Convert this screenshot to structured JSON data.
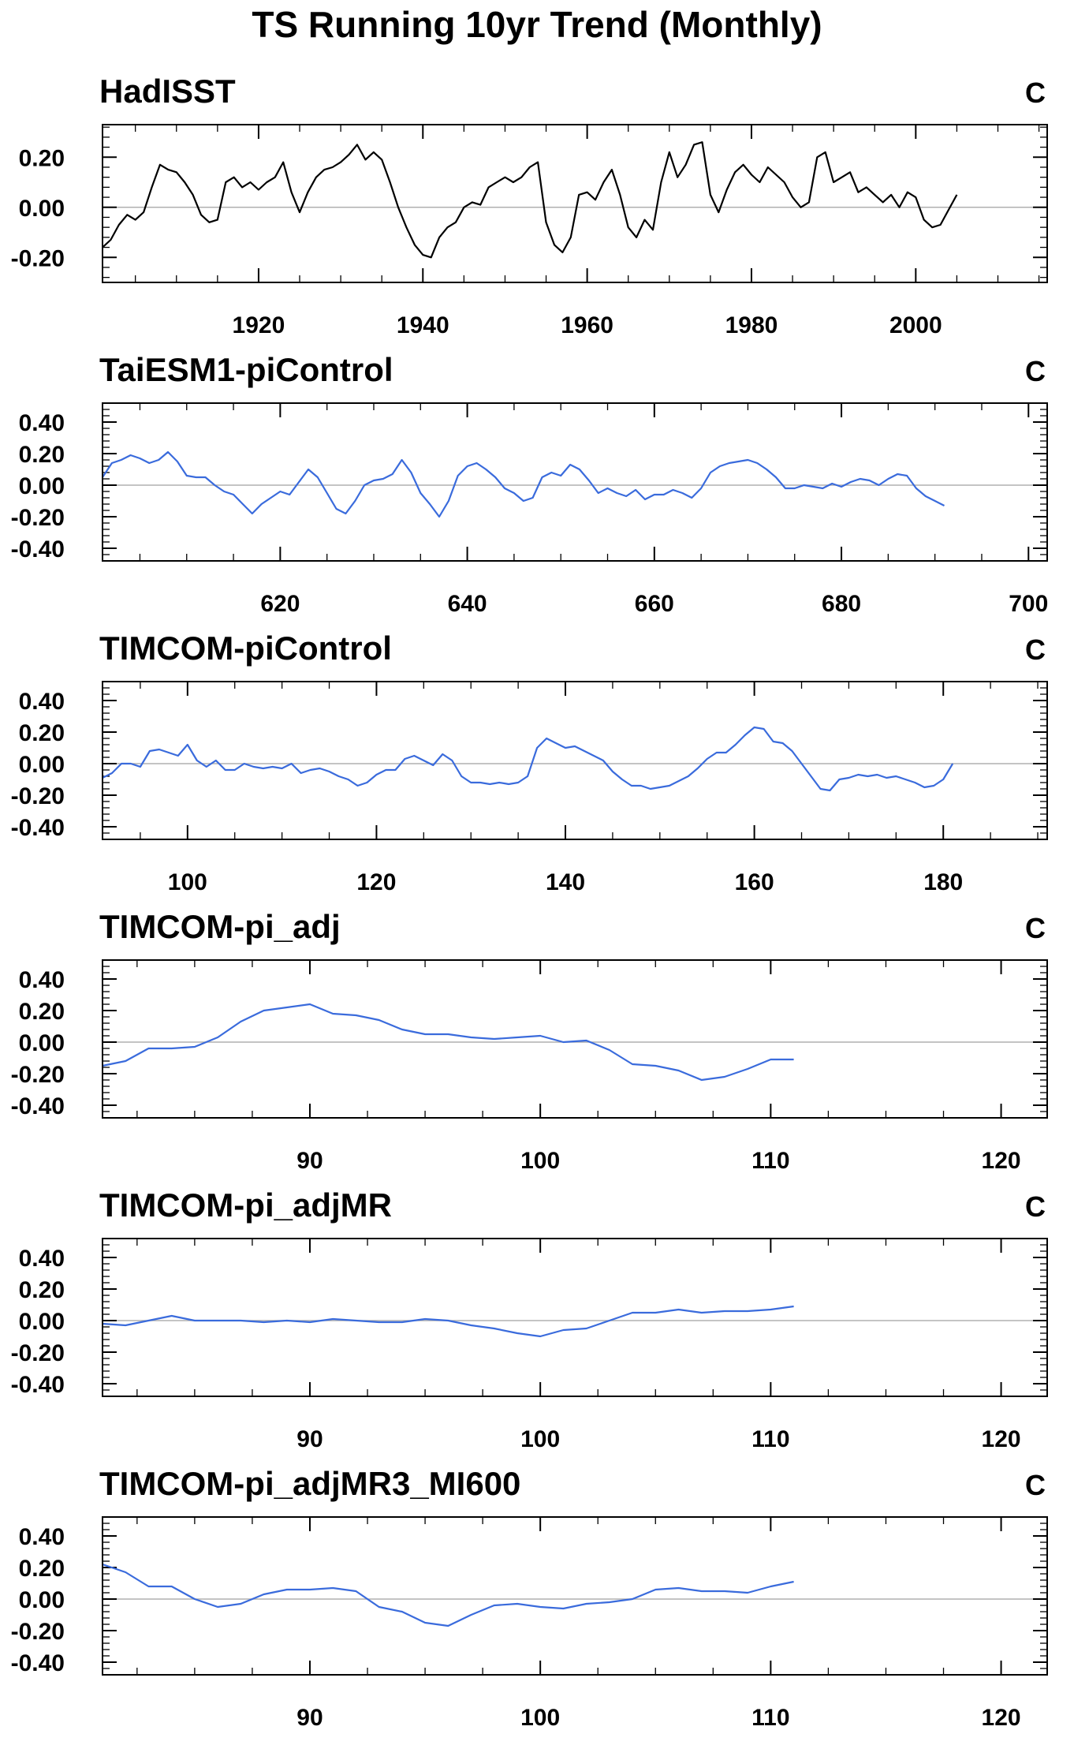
{
  "title": "TS Running 10yr Trend (Monthly)",
  "chart_data": [
    {
      "type": "line",
      "title": "HadISST",
      "unit": "C",
      "color": "#000000",
      "xlim": [
        1901,
        2016
      ],
      "ylim": [
        -0.3,
        0.33
      ],
      "xticks": [
        1920,
        1940,
        1960,
        1980,
        2000
      ],
      "xtick_labels": [
        "1920",
        "1940",
        "1960",
        "1980",
        "2000"
      ],
      "yticks": [
        -0.2,
        0.0,
        0.2
      ],
      "ytick_labels": [
        "-0.20",
        "0.00",
        "0.20"
      ],
      "series": [
        {
          "x": [
            1901,
            1902,
            1903,
            1904,
            1905,
            1906,
            1907,
            1908,
            1909,
            1910,
            1911,
            1912,
            1913,
            1914,
            1915,
            1916,
            1917,
            1918,
            1919,
            1920,
            1921,
            1922,
            1923,
            1924,
            1925,
            1926,
            1927,
            1928,
            1929,
            1930,
            1931,
            1932,
            1933,
            1934,
            1935,
            1936,
            1937,
            1938,
            1939,
            1940,
            1941,
            1942,
            1943,
            1944,
            1945,
            1946,
            1947,
            1948,
            1949,
            1950,
            1951,
            1952,
            1953,
            1954,
            1955,
            1956,
            1957,
            1958,
            1959,
            1960,
            1961,
            1962,
            1963,
            1964,
            1965,
            1966,
            1967,
            1968,
            1969,
            1970,
            1971,
            1972,
            1973,
            1974,
            1975,
            1976,
            1977,
            1978,
            1979,
            1980,
            1981,
            1982,
            1983,
            1984,
            1985,
            1986,
            1987,
            1988,
            1989,
            1990,
            1991,
            1992,
            1993,
            1994,
            1995,
            1996,
            1997,
            1998,
            1999,
            2000,
            2001,
            2002,
            2003,
            2004,
            2005
          ],
          "y": [
            -0.16,
            -0.13,
            -0.07,
            -0.03,
            -0.05,
            -0.02,
            0.08,
            0.17,
            0.15,
            0.14,
            0.1,
            0.05,
            -0.03,
            -0.06,
            -0.05,
            0.1,
            0.12,
            0.08,
            0.1,
            0.07,
            0.1,
            0.12,
            0.18,
            0.06,
            -0.02,
            0.06,
            0.12,
            0.15,
            0.16,
            0.18,
            0.21,
            0.25,
            0.19,
            0.22,
            0.19,
            0.1,
            0.0,
            -0.08,
            -0.15,
            -0.19,
            -0.2,
            -0.12,
            -0.08,
            -0.06,
            0.0,
            0.02,
            0.01,
            0.08,
            0.1,
            0.12,
            0.1,
            0.12,
            0.16,
            0.18,
            -0.06,
            -0.15,
            -0.18,
            -0.12,
            0.05,
            0.06,
            0.03,
            0.1,
            0.15,
            0.05,
            -0.08,
            -0.12,
            -0.05,
            -0.09,
            0.1,
            0.22,
            0.12,
            0.17,
            0.25,
            0.26,
            0.05,
            -0.02,
            0.07,
            0.14,
            0.17,
            0.13,
            0.1,
            0.16,
            0.13,
            0.1,
            0.04,
            0.0,
            0.02,
            0.2,
            0.22,
            0.1,
            0.12,
            0.14,
            0.06,
            0.08,
            0.05,
            0.02,
            0.05,
            0.0,
            0.06,
            0.04,
            -0.05,
            -0.08,
            -0.07,
            -0.01,
            0.05
          ]
        }
      ]
    },
    {
      "type": "line",
      "title": "TaiESM1-piControl",
      "unit": "C",
      "color": "#3a6bdc",
      "xlim": [
        601,
        702
      ],
      "ylim": [
        -0.48,
        0.52
      ],
      "xticks": [
        620,
        640,
        660,
        680,
        700
      ],
      "xtick_labels": [
        "620",
        "640",
        "660",
        "680",
        "700"
      ],
      "yticks": [
        -0.4,
        -0.2,
        0.0,
        0.2,
        0.4
      ],
      "ytick_labels": [
        "-0.40",
        "-0.20",
        "0.00",
        "0.20",
        "0.40"
      ],
      "series": [
        {
          "x": [
            601,
            602,
            603,
            604,
            605,
            606,
            607,
            608,
            609,
            610,
            611,
            612,
            613,
            614,
            615,
            616,
            617,
            618,
            619,
            620,
            621,
            622,
            623,
            624,
            625,
            626,
            627,
            628,
            629,
            630,
            631,
            632,
            633,
            634,
            635,
            636,
            637,
            638,
            639,
            640,
            641,
            642,
            643,
            644,
            645,
            646,
            647,
            648,
            649,
            650,
            651,
            652,
            653,
            654,
            655,
            656,
            657,
            658,
            659,
            660,
            661,
            662,
            663,
            664,
            665,
            666,
            667,
            668,
            669,
            670,
            671,
            672,
            673,
            674,
            675,
            676,
            677,
            678,
            679,
            680,
            681,
            682,
            683,
            684,
            685,
            686,
            687,
            688,
            689,
            690,
            691
          ],
          "y": [
            0.05,
            0.14,
            0.16,
            0.19,
            0.17,
            0.14,
            0.16,
            0.21,
            0.15,
            0.06,
            0.05,
            0.05,
            0.0,
            -0.04,
            -0.06,
            -0.12,
            -0.18,
            -0.12,
            -0.08,
            -0.04,
            -0.06,
            0.02,
            0.1,
            0.05,
            -0.05,
            -0.15,
            -0.18,
            -0.1,
            0.0,
            0.03,
            0.04,
            0.07,
            0.16,
            0.08,
            -0.05,
            -0.12,
            -0.2,
            -0.1,
            0.06,
            0.12,
            0.14,
            0.1,
            0.05,
            -0.02,
            -0.05,
            -0.1,
            -0.08,
            0.05,
            0.08,
            0.06,
            0.13,
            0.1,
            0.03,
            -0.05,
            -0.02,
            -0.05,
            -0.07,
            -0.03,
            -0.09,
            -0.06,
            -0.06,
            -0.03,
            -0.05,
            -0.08,
            -0.02,
            0.08,
            0.12,
            0.14,
            0.15,
            0.16,
            0.14,
            0.1,
            0.05,
            -0.02,
            -0.02,
            0.0,
            -0.01,
            -0.02,
            0.01,
            -0.01,
            0.02,
            0.04,
            0.03,
            0.0,
            0.04,
            0.07,
            0.06,
            -0.02,
            -0.07,
            -0.1,
            -0.13
          ]
        }
      ]
    },
    {
      "type": "line",
      "title": "TIMCOM-piControl",
      "unit": "C",
      "color": "#3a6bdc",
      "xlim": [
        91,
        191
      ],
      "ylim": [
        -0.48,
        0.52
      ],
      "xticks": [
        100,
        120,
        140,
        160,
        180
      ],
      "xtick_labels": [
        "100",
        "120",
        "140",
        "160",
        "180"
      ],
      "yticks": [
        -0.4,
        -0.2,
        0.0,
        0.2,
        0.4
      ],
      "ytick_labels": [
        "-0.40",
        "-0.20",
        "0.00",
        "0.20",
        "0.40"
      ],
      "series": [
        {
          "x": [
            91,
            92,
            93,
            94,
            95,
            96,
            97,
            98,
            99,
            100,
            101,
            102,
            103,
            104,
            105,
            106,
            107,
            108,
            109,
            110,
            111,
            112,
            113,
            114,
            115,
            116,
            117,
            118,
            119,
            120,
            121,
            122,
            123,
            124,
            125,
            126,
            127,
            128,
            129,
            130,
            131,
            132,
            133,
            134,
            135,
            136,
            137,
            138,
            139,
            140,
            141,
            142,
            143,
            144,
            145,
            146,
            147,
            148,
            149,
            150,
            151,
            152,
            153,
            154,
            155,
            156,
            157,
            158,
            159,
            160,
            161,
            162,
            163,
            164,
            165,
            166,
            167,
            168,
            169,
            170,
            171,
            172,
            173,
            174,
            175,
            176,
            177,
            178,
            179,
            180,
            181
          ],
          "y": [
            -0.09,
            -0.06,
            0.0,
            0.0,
            -0.02,
            0.08,
            0.09,
            0.07,
            0.05,
            0.12,
            0.02,
            -0.02,
            0.02,
            -0.04,
            -0.04,
            0.0,
            -0.02,
            -0.03,
            -0.02,
            -0.03,
            0.0,
            -0.06,
            -0.04,
            -0.03,
            -0.05,
            -0.08,
            -0.1,
            -0.14,
            -0.12,
            -0.07,
            -0.04,
            -0.04,
            0.03,
            0.05,
            0.02,
            -0.01,
            0.06,
            0.02,
            -0.08,
            -0.12,
            -0.12,
            -0.13,
            -0.12,
            -0.13,
            -0.12,
            -0.08,
            0.1,
            0.16,
            0.13,
            0.1,
            0.11,
            0.08,
            0.05,
            0.02,
            -0.05,
            -0.1,
            -0.14,
            -0.14,
            -0.16,
            -0.15,
            -0.14,
            -0.11,
            -0.08,
            -0.03,
            0.03,
            0.07,
            0.07,
            0.12,
            0.18,
            0.23,
            0.22,
            0.14,
            0.13,
            0.08,
            0.0,
            -0.08,
            -0.16,
            -0.17,
            -0.1,
            -0.09,
            -0.07,
            -0.08,
            -0.07,
            -0.09,
            -0.08,
            -0.1,
            -0.12,
            -0.15,
            -0.14,
            -0.1,
            0.0
          ]
        }
      ]
    },
    {
      "type": "line",
      "title": "TIMCOM-pi_adj",
      "unit": "C",
      "color": "#3a6bdc",
      "xlim": [
        81,
        122
      ],
      "ylim": [
        -0.48,
        0.52
      ],
      "xticks": [
        90,
        100,
        110,
        120
      ],
      "xtick_labels": [
        "90",
        "100",
        "110",
        "120"
      ],
      "yticks": [
        -0.4,
        -0.2,
        0.0,
        0.2,
        0.4
      ],
      "ytick_labels": [
        "-0.40",
        "-0.20",
        "0.00",
        "0.20",
        "0.40"
      ],
      "series": [
        {
          "x": [
            81,
            82,
            83,
            84,
            85,
            86,
            87,
            88,
            89,
            90,
            91,
            92,
            93,
            94,
            95,
            96,
            97,
            98,
            99,
            100,
            101,
            102,
            103,
            104,
            105,
            106,
            107,
            108,
            109,
            110,
            111
          ],
          "y": [
            -0.15,
            -0.12,
            -0.04,
            -0.04,
            -0.03,
            0.03,
            0.13,
            0.2,
            0.22,
            0.24,
            0.18,
            0.17,
            0.14,
            0.08,
            0.05,
            0.05,
            0.03,
            0.02,
            0.03,
            0.04,
            0.0,
            0.01,
            -0.05,
            -0.14,
            -0.15,
            -0.18,
            -0.24,
            -0.22,
            -0.17,
            -0.11,
            -0.11
          ]
        }
      ]
    },
    {
      "type": "line",
      "title": "TIMCOM-pi_adjMR",
      "unit": "C",
      "color": "#3a6bdc",
      "xlim": [
        81,
        122
      ],
      "ylim": [
        -0.48,
        0.52
      ],
      "xticks": [
        90,
        100,
        110,
        120
      ],
      "xtick_labels": [
        "90",
        "100",
        "110",
        "120"
      ],
      "yticks": [
        -0.4,
        -0.2,
        0.0,
        0.2,
        0.4
      ],
      "ytick_labels": [
        "-0.40",
        "-0.20",
        "0.00",
        "0.20",
        "0.40"
      ],
      "series": [
        {
          "x": [
            81,
            82,
            83,
            84,
            85,
            86,
            87,
            88,
            89,
            90,
            91,
            92,
            93,
            94,
            95,
            96,
            97,
            98,
            99,
            100,
            101,
            102,
            103,
            104,
            105,
            106,
            107,
            108,
            109,
            110,
            111
          ],
          "y": [
            -0.02,
            -0.03,
            0.0,
            0.03,
            0.0,
            0.0,
            0.0,
            -0.01,
            0.0,
            -0.01,
            0.01,
            0.0,
            -0.01,
            -0.01,
            0.01,
            0.0,
            -0.03,
            -0.05,
            -0.08,
            -0.1,
            -0.06,
            -0.05,
            0.0,
            0.05,
            0.05,
            0.07,
            0.05,
            0.06,
            0.06,
            0.07,
            0.09
          ]
        }
      ]
    },
    {
      "type": "line",
      "title": "TIMCOM-pi_adjMR3_MI600",
      "unit": "C",
      "color": "#3a6bdc",
      "xlim": [
        81,
        122
      ],
      "ylim": [
        -0.48,
        0.52
      ],
      "xticks": [
        90,
        100,
        110,
        120
      ],
      "xtick_labels": [
        "90",
        "100",
        "110",
        "120"
      ],
      "yticks": [
        -0.4,
        -0.2,
        0.0,
        0.2,
        0.4
      ],
      "ytick_labels": [
        "-0.40",
        "-0.20",
        "0.00",
        "0.20",
        "0.40"
      ],
      "series": [
        {
          "x": [
            81,
            82,
            83,
            84,
            85,
            86,
            87,
            88,
            89,
            90,
            91,
            92,
            93,
            94,
            95,
            96,
            97,
            98,
            99,
            100,
            101,
            102,
            103,
            104,
            105,
            106,
            107,
            108,
            109,
            110,
            111
          ],
          "y": [
            0.22,
            0.17,
            0.08,
            0.08,
            0.0,
            -0.05,
            -0.03,
            0.03,
            0.06,
            0.06,
            0.07,
            0.05,
            -0.05,
            -0.08,
            -0.15,
            -0.17,
            -0.1,
            -0.04,
            -0.03,
            -0.05,
            -0.06,
            -0.03,
            -0.02,
            0.0,
            0.06,
            0.07,
            0.05,
            0.05,
            0.04,
            0.08,
            0.11
          ]
        }
      ]
    }
  ]
}
